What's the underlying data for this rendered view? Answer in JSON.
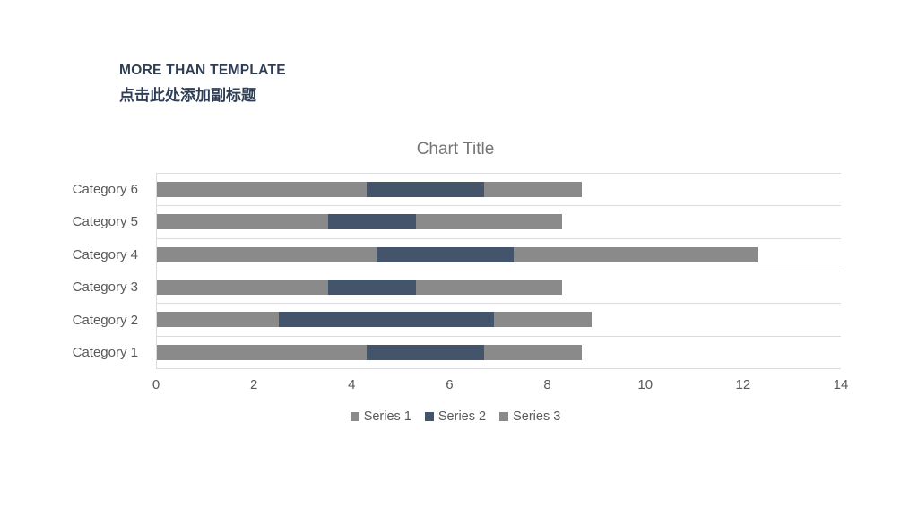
{
  "header": {
    "title": "MORE THAN TEMPLATE",
    "subtitle": "点击此处添加副标题",
    "text_color": "#2f3e55"
  },
  "chart_data": {
    "type": "bar",
    "orientation": "horizontal",
    "stacked": true,
    "title": "Chart Title",
    "xlabel": "",
    "ylabel": "",
    "categories": [
      "Category 1",
      "Category 2",
      "Category 3",
      "Category 4",
      "Category 5",
      "Category 6"
    ],
    "series": [
      {
        "name": "Series 1",
        "color": "#8a8a8a",
        "values": [
          4.3,
          2.5,
          3.5,
          4.5,
          3.5,
          4.3
        ]
      },
      {
        "name": "Series 2",
        "color": "#44546a",
        "values": [
          2.4,
          4.4,
          1.8,
          2.8,
          1.8,
          2.4
        ]
      },
      {
        "name": "Series 3",
        "color": "#8a8a8a",
        "values": [
          2.0,
          2.0,
          3.0,
          5.0,
          3.0,
          2.0
        ]
      }
    ],
    "xlim": [
      0,
      14
    ],
    "x_ticks": [
      0,
      2,
      4,
      6,
      8,
      10,
      12,
      14
    ],
    "category_order_top_to_bottom": "reversed",
    "gridlines": "horizontal-row-boundaries",
    "gridline_color": "#dcdcdc",
    "legend_position": "bottom",
    "title_color": "#757575",
    "axis_text_color": "#595959"
  }
}
